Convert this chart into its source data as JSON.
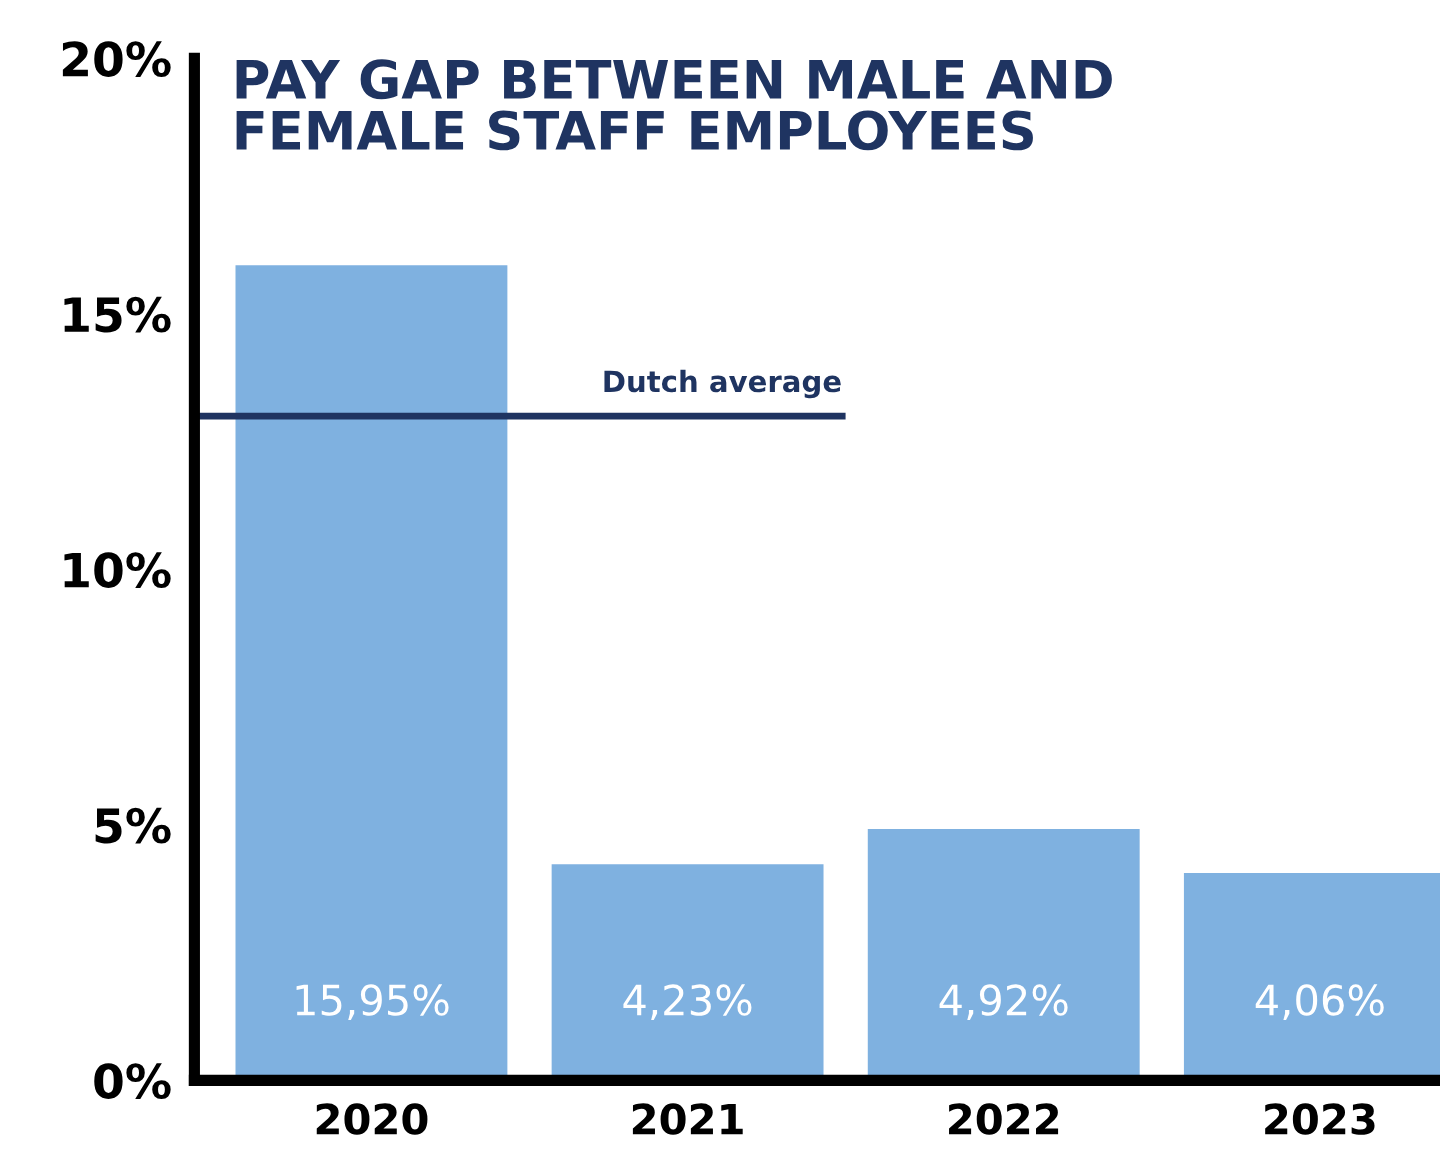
{
  "chart_data": {
    "type": "bar",
    "title": "PAY GAP BETWEEN MALE AND\nFEMALE STAFF EMPLOYEES",
    "categories": [
      "2020",
      "2021",
      "2022",
      "2023"
    ],
    "values": [
      15.95,
      4.23,
      4.92,
      4.06
    ],
    "value_labels": [
      "15,95%",
      "4,23%",
      "4,92%",
      "4,06%"
    ],
    "color": "#7fb1e0",
    "ylim": [
      0,
      20
    ],
    "yticks": [
      {
        "value": 0,
        "label": "0%"
      },
      {
        "value": 5,
        "label": "5%"
      },
      {
        "value": 10,
        "label": "10%"
      },
      {
        "value": 15,
        "label": "15%"
      },
      {
        "value": 20,
        "label": "20%"
      }
    ],
    "ref_lines": [
      {
        "axis": "y",
        "value": 13,
        "label": "Dutch average",
        "color": "#1f3461"
      }
    ],
    "grid": false,
    "legend": false
  }
}
